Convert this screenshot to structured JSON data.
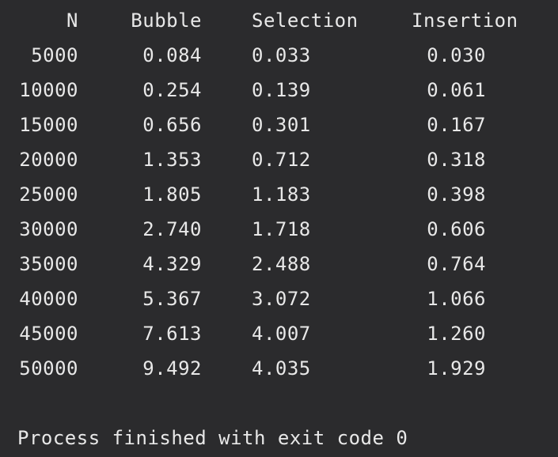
{
  "table": {
    "headers": {
      "n": "N",
      "bubble": "Bubble",
      "selection": "Selection",
      "insertion": "Insertion"
    },
    "rows": [
      {
        "n": "5000",
        "bubble": "0.084",
        "selection": "0.033",
        "insertion": "0.030"
      },
      {
        "n": "10000",
        "bubble": "0.254",
        "selection": "0.139",
        "insertion": "0.061"
      },
      {
        "n": "15000",
        "bubble": "0.656",
        "selection": "0.301",
        "insertion": "0.167"
      },
      {
        "n": "20000",
        "bubble": "1.353",
        "selection": "0.712",
        "insertion": "0.318"
      },
      {
        "n": "25000",
        "bubble": "1.805",
        "selection": "1.183",
        "insertion": "0.398"
      },
      {
        "n": "30000",
        "bubble": "2.740",
        "selection": "1.718",
        "insertion": "0.606"
      },
      {
        "n": "35000",
        "bubble": "4.329",
        "selection": "2.488",
        "insertion": "0.764"
      },
      {
        "n": "40000",
        "bubble": "5.367",
        "selection": "3.072",
        "insertion": "1.066"
      },
      {
        "n": "45000",
        "bubble": "7.613",
        "selection": "4.007",
        "insertion": "1.260"
      },
      {
        "n": "50000",
        "bubble": "9.492",
        "selection": "4.035",
        "insertion": "1.929"
      }
    ]
  },
  "status_message": "Process finished with exit code 0",
  "colors": {
    "background": "#2b2b2d",
    "text": "#e8e8e8"
  }
}
